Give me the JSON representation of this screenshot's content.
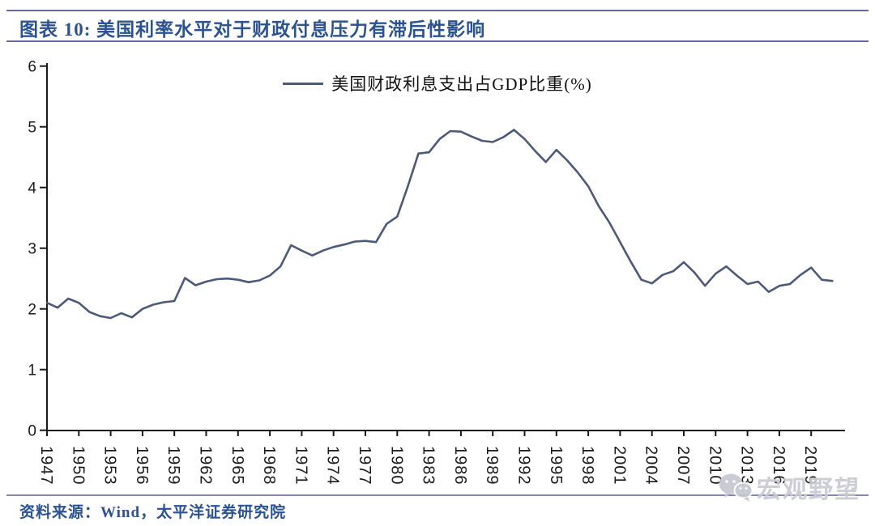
{
  "header": {
    "title": "图表 10:  美国利率水平对于财政付息压力有滞后性影响"
  },
  "legend": {
    "label": "美国财政利息支出占GDP比重(%)"
  },
  "footer": {
    "source": "资料来源：Wind，太平洋证券研究院"
  },
  "watermark": {
    "label": "宏观野望",
    "icon": "wechat-icon"
  },
  "colors": {
    "accent_navy": "#2b5291",
    "rule": "#6667a0",
    "line": "#4a5a78",
    "axis": "#1a1a1a",
    "watermark_gray": "#c9c9d2"
  },
  "chart_data": {
    "type": "line",
    "title": "",
    "xlabel": "",
    "ylabel": "",
    "ylim": [
      0,
      6
    ],
    "y_ticks": [
      0,
      1,
      2,
      3,
      4,
      5,
      6
    ],
    "grid": false,
    "legend_position": "top-center",
    "x_tick_labels": [
      "1947",
      "1950",
      "1953",
      "1956",
      "1959",
      "1962",
      "1965",
      "1968",
      "1971",
      "1974",
      "1977",
      "1980",
      "1983",
      "1986",
      "1989",
      "1992",
      "1995",
      "1998",
      "2001",
      "2004",
      "2007",
      "2010",
      "2013",
      "2016",
      "2019"
    ],
    "series": [
      {
        "name": "美国财政利息支出占GDP比重(%)",
        "color": "#4a5a78",
        "x": [
          1947,
          1948,
          1949,
          1950,
          1951,
          1952,
          1953,
          1954,
          1955,
          1956,
          1957,
          1958,
          1959,
          1960,
          1961,
          1962,
          1963,
          1964,
          1965,
          1966,
          1967,
          1968,
          1969,
          1970,
          1971,
          1972,
          1973,
          1974,
          1975,
          1976,
          1977,
          1978,
          1979,
          1980,
          1981,
          1982,
          1983,
          1984,
          1985,
          1986,
          1987,
          1988,
          1989,
          1990,
          1991,
          1992,
          1993,
          1994,
          1995,
          1996,
          1997,
          1998,
          1999,
          2000,
          2001,
          2002,
          2003,
          2004,
          2005,
          2006,
          2007,
          2008,
          2009,
          2010,
          2011,
          2012,
          2013,
          2014,
          2015,
          2016,
          2017,
          2018,
          2019,
          2020,
          2021
        ],
        "values": [
          2.1,
          2.02,
          2.17,
          2.1,
          1.95,
          1.88,
          1.85,
          1.93,
          1.86,
          2.0,
          2.07,
          2.11,
          2.13,
          2.51,
          2.39,
          2.45,
          2.49,
          2.5,
          2.48,
          2.44,
          2.47,
          2.55,
          2.7,
          3.05,
          2.96,
          2.88,
          2.96,
          3.02,
          3.06,
          3.11,
          3.12,
          3.1,
          3.4,
          3.52,
          4.02,
          4.56,
          4.58,
          4.8,
          4.93,
          4.92,
          4.84,
          4.77,
          4.75,
          4.83,
          4.95,
          4.8,
          4.6,
          4.42,
          4.62,
          4.45,
          4.25,
          4.02,
          3.69,
          3.42,
          3.1,
          2.78,
          2.48,
          2.42,
          2.56,
          2.62,
          2.77,
          2.6,
          2.38,
          2.58,
          2.7,
          2.55,
          2.41,
          2.45,
          2.28,
          2.38,
          2.41,
          2.56,
          2.68,
          2.48,
          2.46
        ]
      }
    ]
  }
}
